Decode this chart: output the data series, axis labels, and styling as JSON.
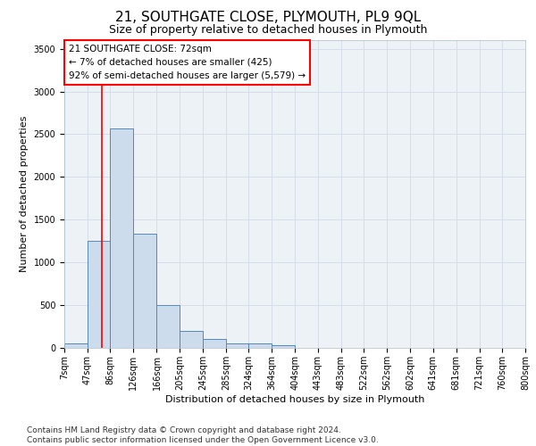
{
  "title": "21, SOUTHGATE CLOSE, PLYMOUTH, PL9 9QL",
  "subtitle": "Size of property relative to detached houses in Plymouth",
  "xlabel": "Distribution of detached houses by size in Plymouth",
  "ylabel": "Number of detached properties",
  "bin_edges": [
    7,
    47,
    86,
    126,
    166,
    205,
    245,
    285,
    324,
    364,
    404,
    443,
    483,
    522,
    562,
    602,
    641,
    681,
    721,
    760,
    800
  ],
  "bin_counts": [
    50,
    1250,
    2570,
    1340,
    500,
    200,
    100,
    50,
    50,
    30,
    5,
    2,
    2,
    0,
    0,
    0,
    0,
    0,
    0,
    0
  ],
  "bar_facecolor": "#ccdcec",
  "bar_edgecolor": "#5588bb",
  "grid_color": "#d4dde8",
  "vline_x": 72,
  "vline_color": "red",
  "annotation_text": "21 SOUTHGATE CLOSE: 72sqm\n← 7% of detached houses are smaller (425)\n92% of semi-detached houses are larger (5,579) →",
  "annotation_box_color": "red",
  "ylim": [
    0,
    3600
  ],
  "yticks": [
    0,
    500,
    1000,
    1500,
    2000,
    2500,
    3000,
    3500
  ],
  "footer_line1": "Contains HM Land Registry data © Crown copyright and database right 2024.",
  "footer_line2": "Contains public sector information licensed under the Open Government Licence v3.0.",
  "title_fontsize": 11,
  "subtitle_fontsize": 9,
  "axis_label_fontsize": 8,
  "tick_fontsize": 7,
  "annotation_fontsize": 7.5,
  "footer_fontsize": 6.5,
  "background_color": "#edf2f7"
}
